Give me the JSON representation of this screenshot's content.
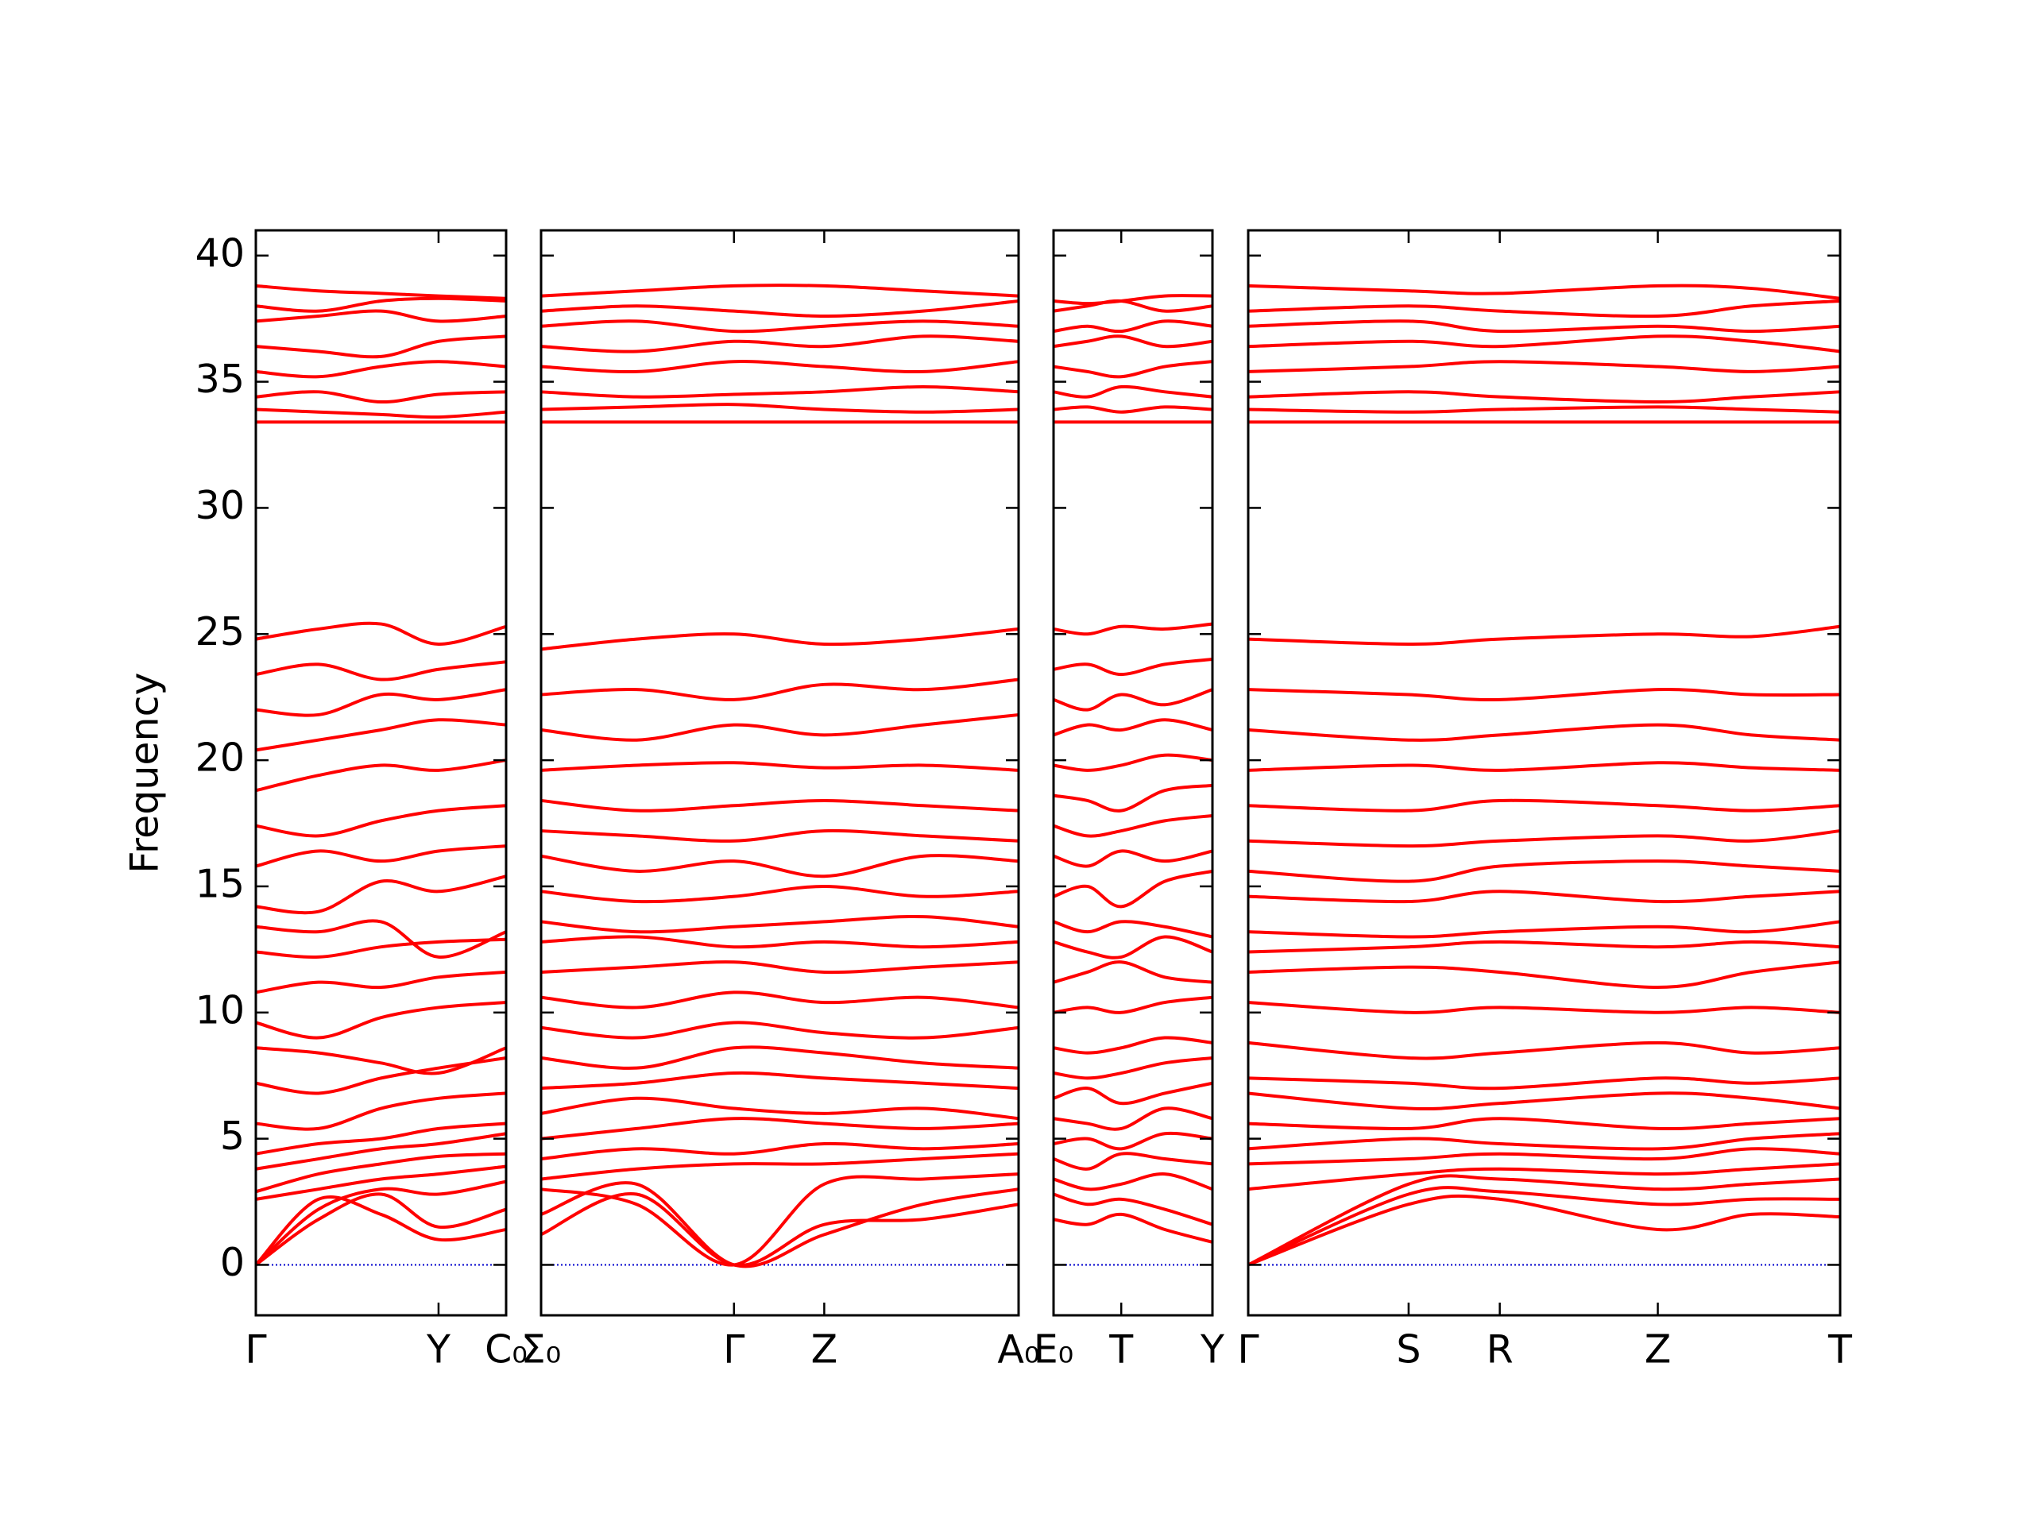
{
  "chart_data": [
    {
      "type": "line",
      "ylabel": "Frequency",
      "color": "#ff0000",
      "ylim": [
        -2,
        41
      ],
      "yticks": [
        0,
        5,
        10,
        15,
        20,
        25,
        30,
        35,
        40
      ],
      "hline": {
        "value": 0,
        "color": "#0000cc",
        "style": "dotted"
      },
      "xlim": [
        0,
        1
      ],
      "xticks": [
        {
          "value": 0,
          "label": "Γ"
        },
        {
          "value": 0.73,
          "label": "Y"
        },
        {
          "value": 1,
          "label": "C₀"
        }
      ],
      "x": [
        0,
        0.25,
        0.5,
        0.73,
        1
      ],
      "bands": [
        [
          0,
          2.6,
          2.0,
          1.0,
          1.4
        ],
        [
          0,
          1.8,
          2.8,
          1.5,
          2.2
        ],
        [
          0,
          2.2,
          3.0,
          2.8,
          3.3
        ],
        [
          2.6,
          3.0,
          3.4,
          3.6,
          3.9
        ],
        [
          2.9,
          3.6,
          4.0,
          4.3,
          4.4
        ],
        [
          3.8,
          4.2,
          4.6,
          4.8,
          5.2
        ],
        [
          4.4,
          4.8,
          5.0,
          5.4,
          5.6
        ],
        [
          5.6,
          5.4,
          6.2,
          6.6,
          6.8
        ],
        [
          7.2,
          6.8,
          7.4,
          7.8,
          8.2
        ],
        [
          8.6,
          8.4,
          8.0,
          7.6,
          8.6
        ],
        [
          9.6,
          9.0,
          9.8,
          10.2,
          10.4
        ],
        [
          10.8,
          11.2,
          11.0,
          11.4,
          11.6
        ],
        [
          12.4,
          12.2,
          12.6,
          12.8,
          12.9
        ],
        [
          13.4,
          13.2,
          13.6,
          12.2,
          13.2
        ],
        [
          14.2,
          14.0,
          15.2,
          14.8,
          15.4
        ],
        [
          15.8,
          16.4,
          16.0,
          16.4,
          16.6
        ],
        [
          17.4,
          17.0,
          17.6,
          18.0,
          18.2
        ],
        [
          18.8,
          19.4,
          19.8,
          19.6,
          20.0
        ],
        [
          20.4,
          20.8,
          21.2,
          21.6,
          21.4
        ],
        [
          22.0,
          21.8,
          22.6,
          22.4,
          22.8
        ],
        [
          23.4,
          23.8,
          23.2,
          23.6,
          23.9
        ],
        [
          24.8,
          25.2,
          25.4,
          24.6,
          25.3
        ],
        [
          33.4,
          33.4,
          33.4,
          33.4,
          33.4
        ],
        [
          33.9,
          33.8,
          33.7,
          33.6,
          33.8
        ],
        [
          34.4,
          34.6,
          34.2,
          34.5,
          34.6
        ],
        [
          35.4,
          35.2,
          35.6,
          35.8,
          35.6
        ],
        [
          36.4,
          36.2,
          36.0,
          36.6,
          36.8
        ],
        [
          37.4,
          37.6,
          37.8,
          37.4,
          37.6
        ],
        [
          38.0,
          37.8,
          38.2,
          38.3,
          38.2
        ],
        [
          38.8,
          38.6,
          38.5,
          38.4,
          38.3
        ]
      ]
    },
    {
      "type": "line",
      "color": "#ff0000",
      "xlim": [
        0,
        1
      ],
      "xticks": [
        {
          "value": 0,
          "label": "Σ₀"
        },
        {
          "value": 0.404,
          "label": "Γ"
        },
        {
          "value": 0.593,
          "label": "Z"
        },
        {
          "value": 1,
          "label": "A₀"
        }
      ],
      "x": [
        0,
        0.2,
        0.404,
        0.593,
        0.8,
        1
      ],
      "bands": [
        [
          1.2,
          2.8,
          0,
          1.6,
          1.8,
          2.4
        ],
        [
          2.0,
          3.2,
          0,
          1.2,
          2.4,
          3.0
        ],
        [
          3.0,
          2.4,
          0,
          3.2,
          3.4,
          3.6
        ],
        [
          3.4,
          3.8,
          4.0,
          4.0,
          4.2,
          4.4
        ],
        [
          4.2,
          4.6,
          4.4,
          4.8,
          4.6,
          4.8
        ],
        [
          5.0,
          5.4,
          5.8,
          5.6,
          5.4,
          5.6
        ],
        [
          6.0,
          6.6,
          6.2,
          6.0,
          6.2,
          5.8
        ],
        [
          7.0,
          7.2,
          7.6,
          7.4,
          7.2,
          7.0
        ],
        [
          8.2,
          7.8,
          8.6,
          8.4,
          8.0,
          7.8
        ],
        [
          9.4,
          9.0,
          9.6,
          9.2,
          9.0,
          9.4
        ],
        [
          10.6,
          10.2,
          10.8,
          10.4,
          10.6,
          10.2
        ],
        [
          11.6,
          11.8,
          12.0,
          11.6,
          11.8,
          12.0
        ],
        [
          12.8,
          13.0,
          12.6,
          12.8,
          12.6,
          12.8
        ],
        [
          13.6,
          13.2,
          13.4,
          13.6,
          13.8,
          13.4
        ],
        [
          14.8,
          14.4,
          14.6,
          15.0,
          14.6,
          14.8
        ],
        [
          16.2,
          15.6,
          16.0,
          15.4,
          16.2,
          16.0
        ],
        [
          17.2,
          17.0,
          16.8,
          17.2,
          17.0,
          16.8
        ],
        [
          18.4,
          18.0,
          18.2,
          18.4,
          18.2,
          18.0
        ],
        [
          19.6,
          19.8,
          19.9,
          19.7,
          19.8,
          19.6
        ],
        [
          21.2,
          20.8,
          21.4,
          21.0,
          21.4,
          21.8
        ],
        [
          22.6,
          22.8,
          22.4,
          23.0,
          22.8,
          23.2
        ],
        [
          24.4,
          24.8,
          25.0,
          24.6,
          24.8,
          25.2
        ],
        [
          33.4,
          33.4,
          33.4,
          33.4,
          33.4,
          33.4
        ],
        [
          33.9,
          34.0,
          34.1,
          33.9,
          33.8,
          33.9
        ],
        [
          34.6,
          34.4,
          34.5,
          34.6,
          34.8,
          34.6
        ],
        [
          35.6,
          35.4,
          35.8,
          35.6,
          35.4,
          35.8
        ],
        [
          36.4,
          36.2,
          36.6,
          36.4,
          36.8,
          36.6
        ],
        [
          37.2,
          37.4,
          37.0,
          37.2,
          37.4,
          37.2
        ],
        [
          37.8,
          38.0,
          37.8,
          37.6,
          37.8,
          38.2
        ],
        [
          38.4,
          38.6,
          38.8,
          38.8,
          38.6,
          38.4
        ]
      ]
    },
    {
      "type": "line",
      "color": "#ff0000",
      "xlim": [
        0,
        1
      ],
      "xticks": [
        {
          "value": 0,
          "label": "E₀"
        },
        {
          "value": 0.426,
          "label": "T"
        },
        {
          "value": 1,
          "label": "Y"
        }
      ],
      "x": [
        0,
        0.213,
        0.426,
        0.7,
        1
      ],
      "bands": [
        [
          1.8,
          1.6,
          2.0,
          1.4,
          0.9
        ],
        [
          2.8,
          2.4,
          2.6,
          2.2,
          1.6
        ],
        [
          3.4,
          3.0,
          3.2,
          3.6,
          3.0
        ],
        [
          4.2,
          3.8,
          4.4,
          4.2,
          4.0
        ],
        [
          4.8,
          5.0,
          4.6,
          5.2,
          5.0
        ],
        [
          5.8,
          5.6,
          5.4,
          6.2,
          5.8
        ],
        [
          6.6,
          7.0,
          6.4,
          6.8,
          7.2
        ],
        [
          7.6,
          7.4,
          7.6,
          8.0,
          8.2
        ],
        [
          8.6,
          8.4,
          8.6,
          9.0,
          8.8
        ],
        [
          10.0,
          10.2,
          10.0,
          10.4,
          10.6
        ],
        [
          11.2,
          11.6,
          12.0,
          11.4,
          11.2
        ],
        [
          12.8,
          12.4,
          12.2,
          13.0,
          12.4
        ],
        [
          13.6,
          13.2,
          13.6,
          13.4,
          13.0
        ],
        [
          14.6,
          15.0,
          14.2,
          15.2,
          15.6
        ],
        [
          16.2,
          15.8,
          16.4,
          16.0,
          16.4
        ],
        [
          17.4,
          17.0,
          17.2,
          17.6,
          17.8
        ],
        [
          18.6,
          18.4,
          18.0,
          18.8,
          19.0
        ],
        [
          19.8,
          19.6,
          19.8,
          20.2,
          20.0
        ],
        [
          21.0,
          21.4,
          21.2,
          21.6,
          21.2
        ],
        [
          22.4,
          22.0,
          22.6,
          22.2,
          22.8
        ],
        [
          23.6,
          23.8,
          23.4,
          23.8,
          24.0
        ],
        [
          25.2,
          25.0,
          25.3,
          25.2,
          25.4
        ],
        [
          33.4,
          33.4,
          33.4,
          33.4,
          33.4
        ],
        [
          33.9,
          34.0,
          33.8,
          34.0,
          33.9
        ],
        [
          34.6,
          34.4,
          34.8,
          34.6,
          34.4
        ],
        [
          35.6,
          35.4,
          35.2,
          35.6,
          35.8
        ],
        [
          36.4,
          36.6,
          36.8,
          36.4,
          36.6
        ],
        [
          37.0,
          37.2,
          37.0,
          37.4,
          37.2
        ],
        [
          37.8,
          38.0,
          38.2,
          37.8,
          38.0
        ],
        [
          38.2,
          38.1,
          38.2,
          38.4,
          38.4
        ]
      ]
    },
    {
      "type": "line",
      "color": "#ff0000",
      "xlim": [
        0,
        1
      ],
      "xticks": [
        {
          "value": 0,
          "label": "Γ"
        },
        {
          "value": 0.271,
          "label": "S"
        },
        {
          "value": 0.425,
          "label": "R"
        },
        {
          "value": 0.692,
          "label": "Z"
        },
        {
          "value": 1,
          "label": "T"
        }
      ],
      "x": [
        0,
        0.271,
        0.425,
        0.692,
        0.85,
        1
      ],
      "bands": [
        [
          0,
          2.4,
          2.6,
          1.4,
          2.0,
          1.9
        ],
        [
          0,
          2.8,
          2.9,
          2.4,
          2.6,
          2.6
        ],
        [
          0,
          3.2,
          3.4,
          3.0,
          3.2,
          3.4
        ],
        [
          3.0,
          3.6,
          3.8,
          3.6,
          3.8,
          4.0
        ],
        [
          4.0,
          4.2,
          4.4,
          4.2,
          4.6,
          4.4
        ],
        [
          4.6,
          5.0,
          4.8,
          4.6,
          5.0,
          5.2
        ],
        [
          5.6,
          5.4,
          5.8,
          5.4,
          5.6,
          5.8
        ],
        [
          6.8,
          6.2,
          6.4,
          6.8,
          6.6,
          6.2
        ],
        [
          7.4,
          7.2,
          7.0,
          7.4,
          7.2,
          7.4
        ],
        [
          8.8,
          8.2,
          8.4,
          8.8,
          8.4,
          8.6
        ],
        [
          10.4,
          10.0,
          10.2,
          10.0,
          10.2,
          10.0
        ],
        [
          11.6,
          11.8,
          11.6,
          11.0,
          11.6,
          12.0
        ],
        [
          12.4,
          12.6,
          12.8,
          12.6,
          12.8,
          12.6
        ],
        [
          13.2,
          13.0,
          13.2,
          13.4,
          13.2,
          13.6
        ],
        [
          14.6,
          14.4,
          14.8,
          14.4,
          14.6,
          14.8
        ],
        [
          15.6,
          15.2,
          15.8,
          16.0,
          15.8,
          15.6
        ],
        [
          16.8,
          16.6,
          16.8,
          17.0,
          16.8,
          17.2
        ],
        [
          18.2,
          18.0,
          18.4,
          18.2,
          18.0,
          18.2
        ],
        [
          19.6,
          19.8,
          19.6,
          19.9,
          19.7,
          19.6
        ],
        [
          21.2,
          20.8,
          21.0,
          21.4,
          21.0,
          20.8
        ],
        [
          22.8,
          22.6,
          22.4,
          22.8,
          22.6,
          22.6
        ],
        [
          24.8,
          24.6,
          24.8,
          25.0,
          24.9,
          25.3
        ],
        [
          33.4,
          33.4,
          33.4,
          33.4,
          33.4,
          33.4
        ],
        [
          33.9,
          33.8,
          33.9,
          34.0,
          33.9,
          33.8
        ],
        [
          34.4,
          34.6,
          34.4,
          34.2,
          34.4,
          34.6
        ],
        [
          35.4,
          35.6,
          35.8,
          35.6,
          35.4,
          35.6
        ],
        [
          36.4,
          36.6,
          36.4,
          36.8,
          36.6,
          36.2
        ],
        [
          37.2,
          37.4,
          37.0,
          37.2,
          37.0,
          37.2
        ],
        [
          37.8,
          38.0,
          37.8,
          37.6,
          38.0,
          38.2
        ],
        [
          38.8,
          38.6,
          38.5,
          38.8,
          38.7,
          38.3
        ]
      ]
    }
  ]
}
